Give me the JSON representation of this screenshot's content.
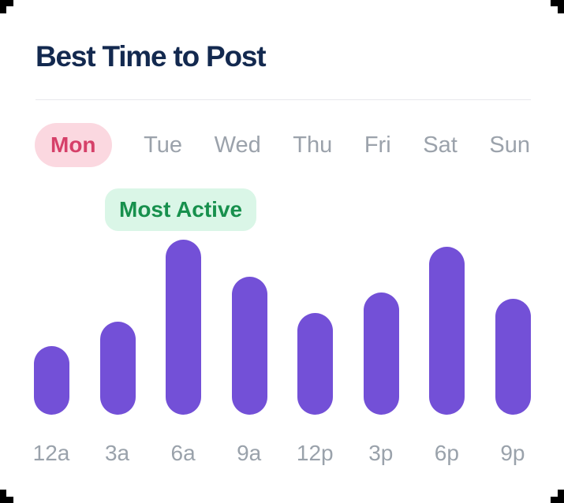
{
  "header": {
    "title": "Best Time to Post"
  },
  "day_tabs": {
    "items": [
      {
        "label": "Mon",
        "active": true
      },
      {
        "label": "Tue",
        "active": false
      },
      {
        "label": "Wed",
        "active": false
      },
      {
        "label": "Thu",
        "active": false
      },
      {
        "label": "Fri",
        "active": false
      },
      {
        "label": "Sat",
        "active": false
      },
      {
        "label": "Sun",
        "active": false
      }
    ]
  },
  "badge": {
    "label": "Most Active"
  },
  "chart_data": {
    "type": "bar",
    "title": "Best Time to Post",
    "selected_day": "Mon",
    "categories": [
      "12a",
      "3a",
      "6a",
      "9a",
      "12p",
      "3p",
      "6p",
      "9p"
    ],
    "values": [
      39,
      53,
      100,
      79,
      58,
      70,
      96,
      66
    ],
    "value_unit": "relative activity, percent of max",
    "xlabel": "",
    "ylabel": "",
    "ylim": [
      0,
      100
    ],
    "grid": false,
    "legend": false,
    "annotations": [
      {
        "text": "Most Active",
        "category": "6a"
      }
    ]
  },
  "colors": {
    "background": "#ffffff",
    "title_text": "#13294f",
    "divider": "#e8e8ec",
    "active_tab_bg": "#fbd8e0",
    "active_tab_text": "#d64069",
    "inactive_tab_text": "#9ba2ab",
    "badge_bg": "#daf6e7",
    "badge_text": "#17904d",
    "bar": "#7350d7",
    "axis_label": "#9aa2ab",
    "corner_marks": "#000000"
  }
}
